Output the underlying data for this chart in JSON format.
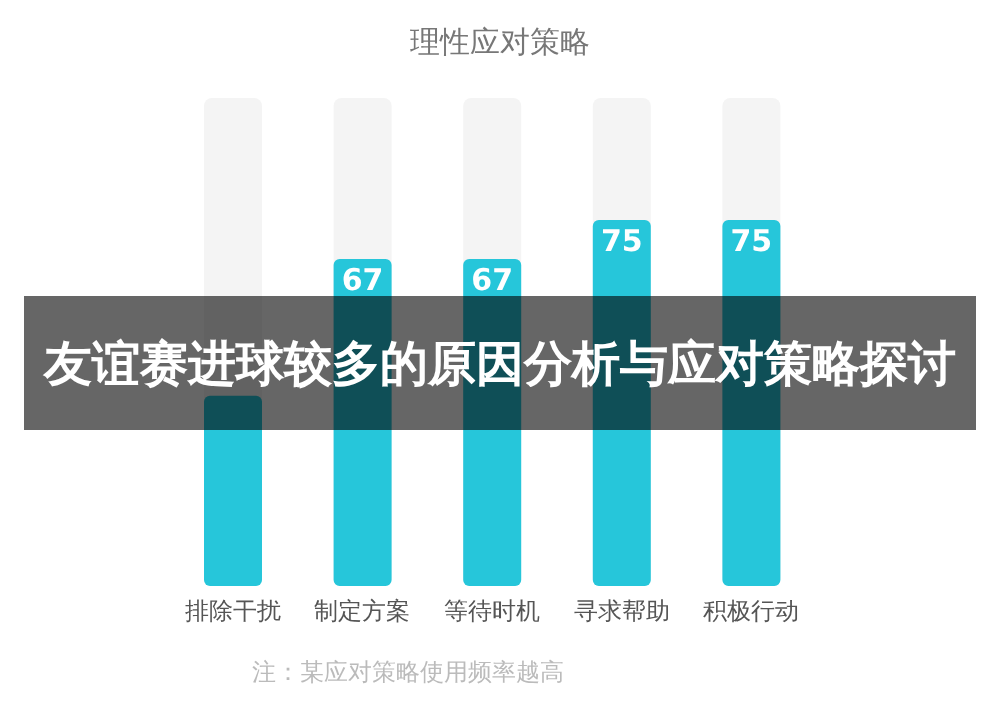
{
  "chart_data": {
    "type": "bar",
    "title": "理性应对策略",
    "categories": [
      "排除干扰",
      "制定方案",
      "等待时机",
      "寻求帮助",
      "积极行动"
    ],
    "values": [
      39,
      67,
      67,
      75,
      75
    ],
    "value_labels": [
      null,
      "67",
      "67",
      "75",
      "75"
    ],
    "color": "#26c6da",
    "ylim": [
      0,
      100
    ],
    "annotations": [
      "友谊赛进球较多的原因分析与应对策略探讨",
      "注：某应对策略使用频率越高"
    ]
  }
}
